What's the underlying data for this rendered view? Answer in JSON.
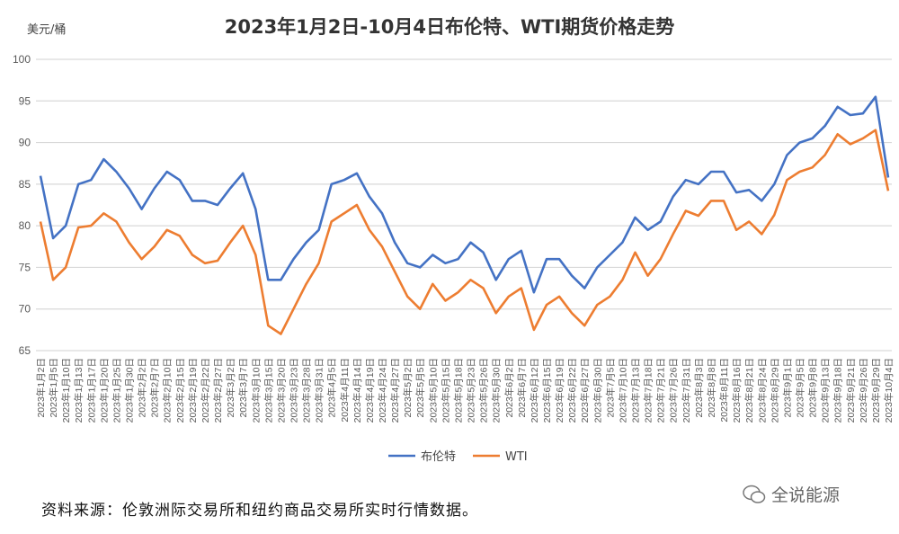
{
  "chart_data": {
    "type": "line",
    "title": "2023年1月2日-10月4日布伦特、WTI期货价格走势",
    "ylabel": "美元/桶",
    "ylim": [
      65,
      100
    ],
    "yticks": [
      "65",
      "70",
      "75",
      "80",
      "85",
      "90",
      "95",
      "100"
    ],
    "grid": true,
    "legend": "bottom",
    "x": [
      "2023年1月2日",
      "2023年1月5日",
      "2023年1月10日",
      "2023年1月13日",
      "2023年1月17日",
      "2023年1月20日",
      "2023年1月25日",
      "2023年1月30日",
      "2023年2月2日",
      "2023年2月7日",
      "2023年2月10日",
      "2023年2月15日",
      "2023年2月19日",
      "2023年2月22日",
      "2023年2月27日",
      "2023年3月2日",
      "2023年3月7日",
      "2023年3月10日",
      "2023年3月15日",
      "2023年3月20日",
      "2023年3月23日",
      "2023年3月28日",
      "2023年3月31日",
      "2023年4月5日",
      "2023年4月11日",
      "2023年4月14日",
      "2023年4月19日",
      "2023年4月24日",
      "2023年4月27日",
      "2023年5月2日",
      "2023年5月5日",
      "2023年5月10日",
      "2023年5月15日",
      "2023年5月18日",
      "2023年5月23日",
      "2023年5月26日",
      "2023年5月30日",
      "2023年6月2日",
      "2023年6月7日",
      "2023年6月12日",
      "2023年6月15日",
      "2023年6月19日",
      "2023年6月22日",
      "2023年6月27日",
      "2023年6月30日",
      "2023年7月5日",
      "2023年7月10日",
      "2023年7月13日",
      "2023年7月18日",
      "2023年7月21日",
      "2023年7月26日",
      "2023年7月31日",
      "2023年8月3日",
      "2023年8月8日",
      "2023年8月11日",
      "2023年8月16日",
      "2023年8月21日",
      "2023年8月24日",
      "2023年8月29日",
      "2023年9月1日",
      "2023年9月5日",
      "2023年9月8日",
      "2023年9月13日",
      "2023年9月18日",
      "2023年9月21日",
      "2023年9月26日",
      "2023年9月29日",
      "2023年10月4日"
    ],
    "series": [
      {
        "name": "布伦特",
        "color": "#4472C4",
        "values": [
          86,
          78.5,
          80,
          85,
          85.5,
          88,
          86.5,
          84.5,
          82,
          84.5,
          86.5,
          85.5,
          83,
          83,
          82.5,
          84.5,
          86.3,
          82,
          73.5,
          73.5,
          76,
          78,
          79.5,
          85,
          85.5,
          86.3,
          83.5,
          81.5,
          78,
          75.5,
          75,
          76.5,
          75.5,
          76,
          78,
          76.8,
          73.5,
          76,
          77,
          72,
          76,
          76,
          74,
          72.5,
          75,
          76.5,
          78,
          81,
          79.5,
          80.5,
          83.5,
          85.5,
          85,
          86.5,
          86.5,
          84,
          84.3,
          83,
          85,
          88.5,
          90,
          90.5,
          92,
          94.3,
          93.3,
          93.5,
          95.5,
          85.8
        ]
      },
      {
        "name": "WTI",
        "color": "#ED7D31",
        "values": [
          80.5,
          73.5,
          75,
          79.8,
          80,
          81.5,
          80.5,
          78,
          76,
          77.5,
          79.5,
          78.8,
          76.5,
          75.5,
          75.8,
          78,
          80,
          76.5,
          68,
          67,
          70,
          73,
          75.5,
          80.5,
          81.5,
          82.5,
          79.5,
          77.5,
          74.5,
          71.5,
          70,
          73,
          71,
          72,
          73.5,
          72.5,
          69.5,
          71.5,
          72.5,
          67.5,
          70.5,
          71.5,
          69.5,
          68,
          70.5,
          71.5,
          73.5,
          76.8,
          74,
          76,
          79,
          81.8,
          81.2,
          83,
          83,
          79.5,
          80.5,
          79,
          81.3,
          85.5,
          86.5,
          87,
          88.5,
          91,
          89.8,
          90.5,
          91.5,
          84.2
        ]
      }
    ]
  },
  "source": "资料来源：伦敦洲际交易所和纽约商品交易所实时行情数据。",
  "watermark": "全说能源"
}
